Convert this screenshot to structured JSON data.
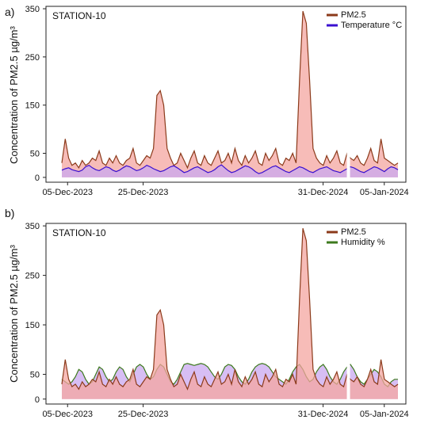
{
  "chart_data": [
    {
      "type": "area",
      "panel_label": "a)",
      "station": "STATION-10",
      "ylabel": "Concentration of PM2.5 µg/m³",
      "ylim": [
        -10,
        355
      ],
      "yticks": [
        0,
        50,
        150,
        250,
        350
      ],
      "xticks": [
        "05-Dec-2023",
        "25-Dec-2023",
        "31-Dec-2024",
        "05-Jan-2024"
      ],
      "legend_position": "top-right",
      "series": [
        {
          "name": "PM2.5",
          "color": "#8b3a1a",
          "fill": "#f4a6a0",
          "values": [
            30,
            80,
            40,
            25,
            30,
            20,
            35,
            25,
            30,
            40,
            35,
            55,
            30,
            25,
            40,
            30,
            45,
            30,
            25,
            35,
            40,
            60,
            30,
            25,
            35,
            45,
            40,
            60,
            170,
            180,
            150,
            60,
            40,
            25,
            30,
            50,
            35,
            20,
            40,
            55,
            30,
            25,
            45,
            30,
            25,
            40,
            55,
            30,
            35,
            50,
            30,
            60,
            35,
            25,
            45,
            30,
            40,
            55,
            30,
            25,
            50,
            35,
            45,
            60,
            30,
            25,
            40,
            35,
            50,
            30,
            200,
            345,
            320,
            200,
            60,
            40,
            30,
            25,
            45,
            30,
            40,
            55,
            30,
            25,
            50,
            40,
            35,
            45,
            30,
            25,
            40,
            60,
            35,
            30,
            80,
            40,
            35,
            30,
            25,
            30
          ]
        },
        {
          "name": "Temperature °C",
          "color": "#3a0fd0",
          "fill": "#c9a8f0",
          "values": [
            15,
            18,
            20,
            16,
            14,
            12,
            15,
            22,
            25,
            20,
            16,
            14,
            18,
            22,
            20,
            15,
            12,
            15,
            20,
            24,
            22,
            18,
            14,
            16,
            20,
            25,
            22,
            18,
            15,
            12,
            14,
            18,
            22,
            24,
            20,
            15,
            10,
            12,
            16,
            20,
            22,
            18,
            14,
            10,
            12,
            16,
            22,
            26,
            20,
            14,
            10,
            12,
            16,
            20,
            24,
            22,
            18,
            12,
            8,
            10,
            14,
            18,
            22,
            24,
            20,
            16,
            12,
            10,
            14,
            18,
            22,
            20,
            16,
            12,
            10,
            14,
            18,
            20,
            22,
            18,
            14,
            12,
            10,
            14,
            18,
            22,
            20,
            16,
            12,
            10,
            14,
            18,
            22,
            20,
            16,
            12,
            18,
            22,
            20,
            16
          ]
        }
      ]
    },
    {
      "type": "area",
      "panel_label": "b)",
      "station": "STATION-10",
      "ylabel": "Concentration of PM2.5 µg/m³",
      "ylim": [
        -10,
        355
      ],
      "yticks": [
        0,
        50,
        150,
        250,
        350
      ],
      "xticks": [
        "05-Dec-2023",
        "25-Dec-2023",
        "31-Dec-2024",
        "05-Jan-2024"
      ],
      "legend_position": "top-right",
      "series": [
        {
          "name": "PM2.5",
          "color": "#8b3a1a",
          "fill": "#f4a6a0",
          "values": [
            30,
            80,
            40,
            25,
            30,
            20,
            35,
            25,
            30,
            40,
            35,
            55,
            30,
            25,
            40,
            30,
            45,
            30,
            25,
            35,
            40,
            60,
            30,
            25,
            35,
            45,
            40,
            60,
            170,
            180,
            150,
            60,
            40,
            25,
            30,
            50,
            35,
            20,
            40,
            55,
            30,
            25,
            45,
            30,
            25,
            40,
            55,
            30,
            35,
            50,
            30,
            60,
            35,
            25,
            45,
            30,
            40,
            55,
            30,
            25,
            50,
            35,
            45,
            60,
            30,
            25,
            40,
            35,
            50,
            30,
            200,
            345,
            320,
            200,
            60,
            40,
            30,
            25,
            45,
            30,
            40,
            55,
            30,
            25,
            50,
            40,
            35,
            45,
            30,
            25,
            40,
            60,
            35,
            30,
            80,
            40,
            35,
            30,
            25,
            30
          ]
        },
        {
          "name": "Humidity %",
          "color": "#3d7a1e",
          "fill": "#c9a8f0",
          "values": [
            40,
            35,
            30,
            35,
            45,
            60,
            55,
            40,
            30,
            35,
            50,
            65,
            60,
            45,
            35,
            40,
            55,
            65,
            60,
            45,
            35,
            50,
            65,
            70,
            65,
            50,
            40,
            45,
            60,
            70,
            65,
            50,
            35,
            30,
            40,
            55,
            70,
            72,
            70,
            68,
            70,
            72,
            70,
            65,
            55,
            45,
            40,
            50,
            65,
            70,
            68,
            60,
            45,
            35,
            30,
            40,
            55,
            65,
            70,
            72,
            70,
            65,
            55,
            45,
            40,
            35,
            30,
            40,
            55,
            65,
            70,
            60,
            45,
            35,
            40,
            55,
            65,
            70,
            60,
            45,
            35,
            30,
            40,
            55,
            65,
            70,
            60,
            45,
            35,
            30,
            40,
            50,
            60,
            55,
            45,
            30,
            25,
            35,
            40,
            40
          ]
        }
      ]
    }
  ]
}
